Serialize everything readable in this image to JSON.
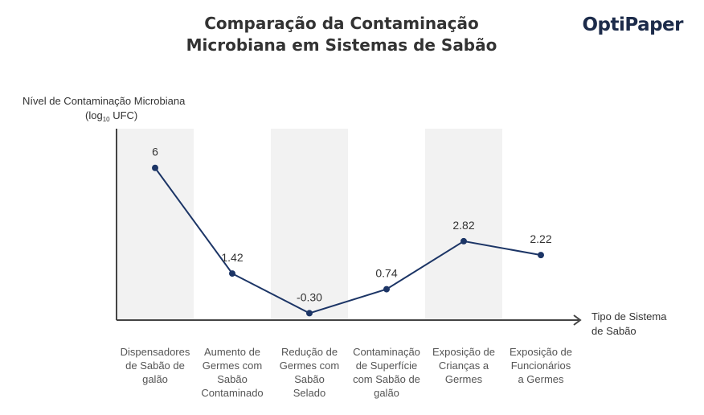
{
  "header": {
    "title_line1": "Comparação da Contaminação",
    "title_line2": "Microbiana em Sistemas de Sabão",
    "brand": "OptiPaper"
  },
  "colors": {
    "line": "#1c3566",
    "band": "#f2f2f2",
    "axis": "#444444",
    "brand": "#1c2b4a"
  },
  "chart_data": {
    "type": "line",
    "title": "Comparação da Contaminação Microbiana em Sistemas de Sabão",
    "ylabel_line1": "Nível de Contaminação Microbiana",
    "ylabel_unit_pre": "(log",
    "ylabel_unit_sub": "10",
    "ylabel_unit_post": " UFC)",
    "xlabel_line1": "Tipo de Sistema",
    "xlabel_line2": "de Sabão",
    "categories": [
      [
        "Dispensadores",
        "de Sabão de",
        "galão"
      ],
      [
        "Aumento de",
        "Germes com",
        "Sabão",
        "Contaminado"
      ],
      [
        "Redução de",
        "Germes com",
        "Sabão",
        "Selado"
      ],
      [
        "Contaminação",
        "de Superfície",
        "com Sabão de",
        "galão"
      ],
      [
        "Exposição de",
        "Crianças a",
        "Germes"
      ],
      [
        "Exposição de",
        "Funcionários",
        "a Germes"
      ]
    ],
    "values": [
      6,
      1.42,
      -0.3,
      0.74,
      2.82,
      2.22
    ],
    "value_labels": [
      "6",
      "1.42",
      "-0.30",
      "0.74",
      "2.82",
      "2.22"
    ],
    "ylim": [
      -0.6,
      7.7
    ],
    "grid": false,
    "shaded_bands": [
      0,
      2,
      4
    ]
  }
}
